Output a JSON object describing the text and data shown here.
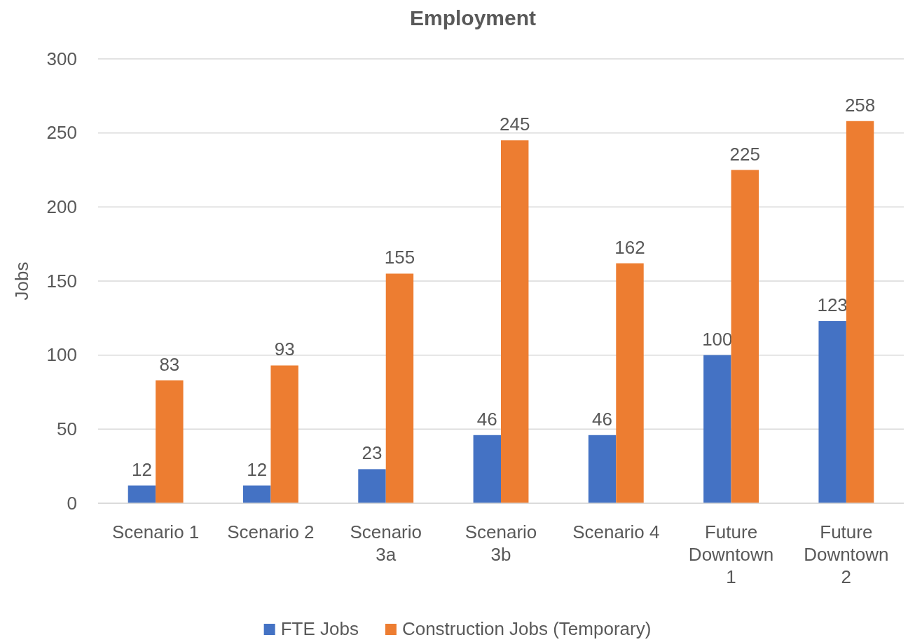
{
  "chart_data": {
    "type": "bar",
    "title": "Employment",
    "ylabel": "Jobs",
    "categories": [
      "Scenario 1",
      "Scenario 2",
      "Scenario 3a",
      "Scenario 3b",
      "Scenario 4",
      "Future Downtown 1",
      "Future Downtown 2"
    ],
    "series": [
      {
        "name": "FTE Jobs",
        "color": "#4472c4",
        "values": [
          12,
          12,
          23,
          46,
          46,
          100,
          123
        ]
      },
      {
        "name": "Construction Jobs (Temporary)",
        "color": "#ed7d31",
        "values": [
          83,
          93,
          155,
          245,
          162,
          225,
          258
        ]
      }
    ],
    "ylim": [
      0,
      300
    ],
    "yticks": [
      0,
      50,
      100,
      150,
      200,
      250,
      300
    ],
    "grid": "y",
    "legend": "bottom",
    "data_labels": true
  }
}
